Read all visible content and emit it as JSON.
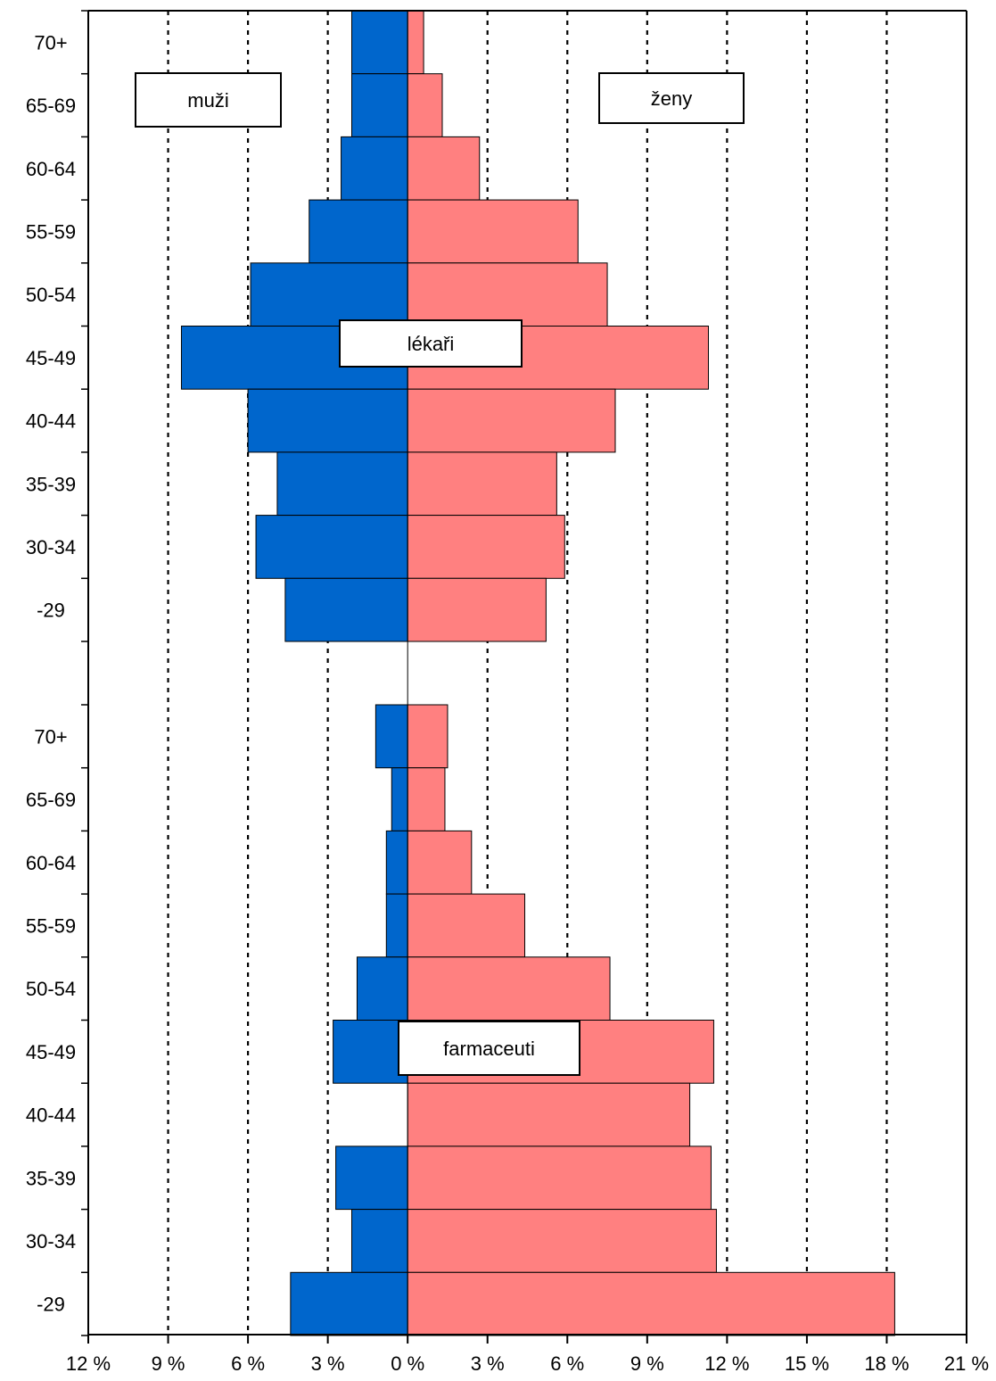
{
  "chart_data": {
    "type": "bar",
    "orientation": "horizontal-population-pyramid",
    "xlim": [
      -12,
      21
    ],
    "x_ticks": [
      -12,
      -9,
      -6,
      -3,
      0,
      3,
      6,
      9,
      12,
      15,
      18,
      21
    ],
    "x_tick_labels": [
      "12 %",
      "9 %",
      "6 %",
      "3 %",
      "0 %",
      "3 %",
      "6 %",
      "9 %",
      "12 %",
      "15 %",
      "18 %",
      "21 %"
    ],
    "grid": "vertical dotted lines at each tick",
    "side_labels": {
      "left": "muži",
      "right": "ženy"
    },
    "colors": {
      "muzi": "#0066CC",
      "zeny": "#FF8080"
    },
    "panels": [
      {
        "label": "lékaři",
        "categories": [
          "70+",
          "65-69",
          "60-64",
          "55-59",
          "50-54",
          "45-49",
          "40-44",
          "35-39",
          "30-34",
          "-29"
        ],
        "series": [
          {
            "name": "muži",
            "values": [
              2.1,
              2.1,
              2.5,
              3.7,
              5.9,
              8.5,
              6.0,
              4.9,
              5.7,
              4.6
            ]
          },
          {
            "name": "ženy",
            "values": [
              0.6,
              1.3,
              2.7,
              6.4,
              7.5,
              11.3,
              7.8,
              5.6,
              5.9,
              5.2
            ]
          }
        ]
      },
      {
        "label": "farmaceuti",
        "categories": [
          "70+",
          "65-69",
          "60-64",
          "55-59",
          "50-54",
          "45-49",
          "40-44",
          "35-39",
          "30-34",
          "-29"
        ],
        "series": [
          {
            "name": "muži",
            "values": [
              1.2,
              0.6,
              0.8,
              0.8,
              1.9,
              2.8,
              0.0,
              2.7,
              2.1,
              4.4
            ]
          },
          {
            "name": "ženy",
            "values": [
              1.5,
              1.4,
              2.4,
              4.4,
              7.6,
              11.5,
              10.6,
              11.4,
              11.6,
              18.3
            ]
          }
        ]
      }
    ]
  }
}
